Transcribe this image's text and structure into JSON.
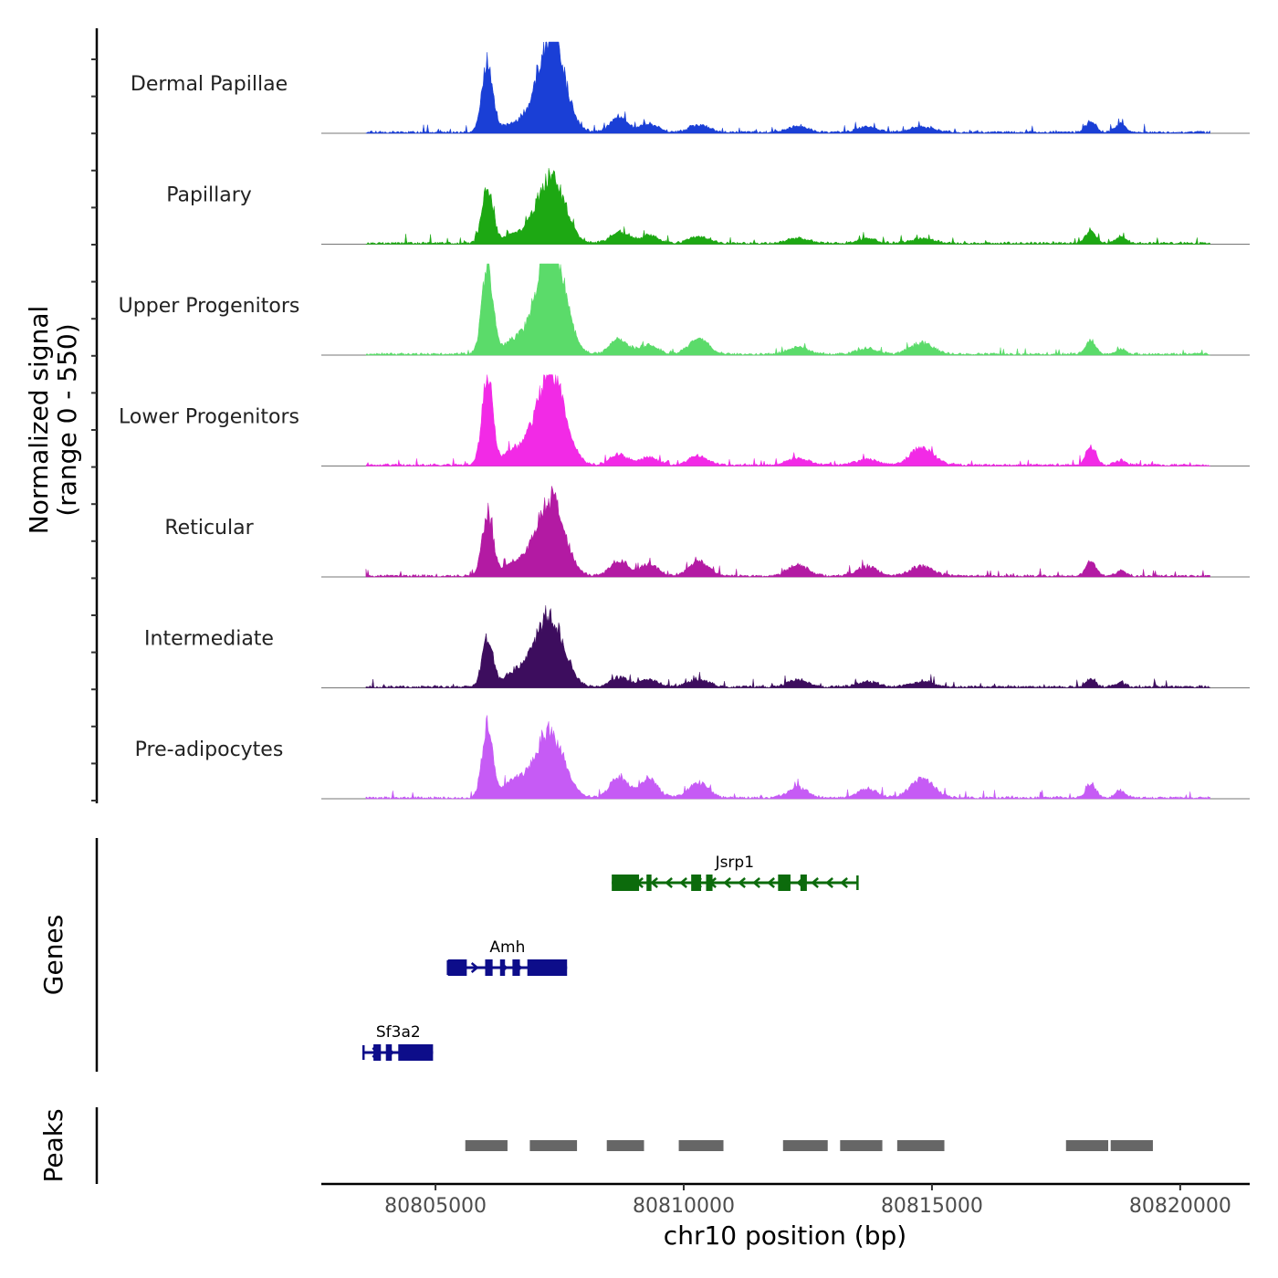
{
  "chart_data": {
    "type": "area",
    "title": "",
    "ylabel": "Normalized signal",
    "ylabel_range": "(range 0 - 550)",
    "ylim": [
      0,
      550
    ],
    "xlabel": "chr10 position (bp)",
    "xlim": [
      80802700,
      80821400
    ],
    "x_ticks": [
      80805000,
      80810000,
      80815000,
      80820000
    ],
    "x_tick_labels": [
      "80805000",
      "80810000",
      "80815000",
      "80820000"
    ],
    "signal_start": 80803600,
    "signal_end": 80820600,
    "peaks_bp": [
      {
        "pos": 80806050,
        "width": 110
      },
      {
        "pos": 80807350,
        "width": 260
      },
      {
        "pos": 80807000,
        "width": 350
      },
      {
        "pos": 80806500,
        "width": 150
      },
      {
        "pos": 80808700,
        "width": 180
      },
      {
        "pos": 80809300,
        "width": 180
      },
      {
        "pos": 80810300,
        "width": 200
      },
      {
        "pos": 80812300,
        "width": 200
      },
      {
        "pos": 80813700,
        "width": 200
      },
      {
        "pos": 80814800,
        "width": 230
      },
      {
        "pos": 80818200,
        "width": 100
      },
      {
        "pos": 80818800,
        "width": 100
      }
    ],
    "series": [
      {
        "name": "Dermal Papillae",
        "color": "#1a3fd6",
        "heights": [
          440,
          540,
          80,
          25,
          90,
          55,
          45,
          40,
          35,
          35,
          70,
          55
        ]
      },
      {
        "name": "Papillary",
        "color": "#1da813",
        "heights": [
          340,
          370,
          80,
          22,
          70,
          50,
          40,
          35,
          30,
          30,
          80,
          40
        ]
      },
      {
        "name": "Upper Progenitors",
        "color": "#5bdb6a",
        "heights": [
          560,
          640,
          120,
          40,
          95,
          60,
          95,
          45,
          35,
          70,
          85,
          30
        ]
      },
      {
        "name": "Lower Progenitors",
        "color": "#f22ae6",
        "heights": [
          540,
          530,
          130,
          45,
          65,
          50,
          55,
          45,
          40,
          110,
          120,
          30
        ]
      },
      {
        "name": "Reticular",
        "color": "#b31aa3",
        "heights": [
          390,
          420,
          110,
          40,
          95,
          75,
          90,
          70,
          60,
          60,
          95,
          35
        ]
      },
      {
        "name": "Intermediate",
        "color": "#3d0d5e",
        "heights": [
          300,
          340,
          150,
          30,
          60,
          45,
          45,
          45,
          35,
          35,
          45,
          30
        ]
      },
      {
        "name": "Pre-adipocytes",
        "color": "#c65bf5",
        "heights": [
          450,
          330,
          140,
          55,
          130,
          120,
          95,
          65,
          55,
          120,
          85,
          45
        ]
      }
    ],
    "genes": [
      {
        "name": "Jsrp1",
        "start": 80808550,
        "end": 80813500,
        "strand": "-",
        "color": "#0c6b0c",
        "exons": [
          [
            80808550,
            80809100
          ],
          [
            80809250,
            80809350
          ],
          [
            80810150,
            80810350
          ],
          [
            80810450,
            80810580
          ],
          [
            80811900,
            80812150
          ],
          [
            80812350,
            80812480
          ]
        ]
      },
      {
        "name": "Amh",
        "start": 80805250,
        "end": 80807650,
        "strand": "+",
        "color": "#0d0d8a",
        "exons": [
          [
            80805250,
            80805630
          ],
          [
            80806000,
            80806150
          ],
          [
            80806300,
            80806400
          ],
          [
            80806550,
            80806700
          ],
          [
            80806850,
            80807650
          ]
        ]
      },
      {
        "name": "Sf3a2",
        "start": 80803550,
        "end": 80804950,
        "strand": "+",
        "color": "#0d0d8a",
        "exons": [
          [
            80803750,
            80803900
          ],
          [
            80804000,
            80804120
          ],
          [
            80804250,
            80804950
          ]
        ]
      }
    ],
    "peak_regions": [
      [
        80805600,
        80806450
      ],
      [
        80806900,
        80807850
      ],
      [
        80808450,
        80809200
      ],
      [
        80809900,
        80810800
      ],
      [
        80812000,
        80812900
      ],
      [
        80813150,
        80814000
      ],
      [
        80814300,
        80815250
      ],
      [
        80817700,
        80818550
      ],
      [
        80818600,
        80819450
      ]
    ],
    "peak_color": "#666666",
    "panel_labels": {
      "genes": "Genes",
      "peaks": "Peaks"
    }
  }
}
